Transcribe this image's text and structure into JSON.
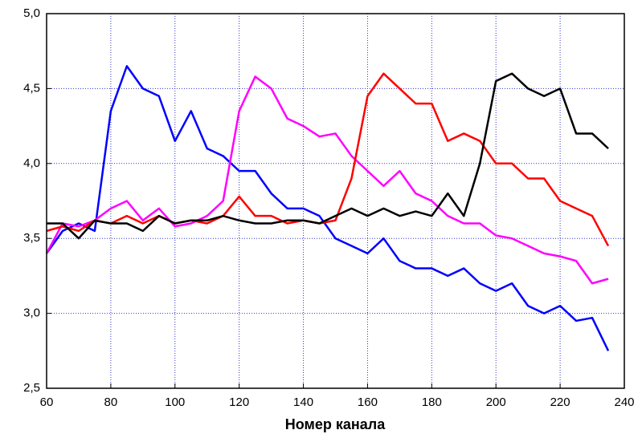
{
  "chart_data": {
    "type": "line",
    "x_label": "Номер канала",
    "x": [
      60,
      65,
      70,
      75,
      80,
      85,
      90,
      95,
      100,
      105,
      110,
      115,
      120,
      125,
      130,
      135,
      140,
      145,
      150,
      155,
      160,
      165,
      170,
      175,
      180,
      185,
      190,
      195,
      200,
      205,
      210,
      215,
      220,
      225,
      230,
      235
    ],
    "series": [
      {
        "color": "#0000ff",
        "values": [
          3.4,
          3.55,
          3.6,
          3.55,
          4.35,
          4.65,
          4.5,
          4.45,
          4.15,
          4.35,
          4.1,
          4.05,
          3.95,
          3.95,
          3.8,
          3.7,
          3.7,
          3.65,
          3.5,
          3.45,
          3.4,
          3.5,
          3.35,
          3.3,
          3.3,
          3.25,
          3.3,
          3.2,
          3.15,
          3.2,
          3.05,
          3.0,
          3.05,
          2.95,
          2.97,
          2.75
        ]
      },
      {
        "color": "#ff00ff",
        "values": [
          3.4,
          3.6,
          3.58,
          3.62,
          3.7,
          3.75,
          3.62,
          3.7,
          3.58,
          3.6,
          3.65,
          3.75,
          4.35,
          4.58,
          4.5,
          4.3,
          4.25,
          4.18,
          4.2,
          4.05,
          3.95,
          3.85,
          3.95,
          3.8,
          3.75,
          3.65,
          3.6,
          3.6,
          3.52,
          3.5,
          3.45,
          3.4,
          3.38,
          3.35,
          3.2,
          3.23
        ]
      },
      {
        "color": "#ff0000",
        "values": [
          3.55,
          3.58,
          3.55,
          3.62,
          3.6,
          3.65,
          3.6,
          3.65,
          3.6,
          3.62,
          3.6,
          3.65,
          3.78,
          3.65,
          3.65,
          3.6,
          3.62,
          3.6,
          3.62,
          3.9,
          4.45,
          4.6,
          4.5,
          4.4,
          4.4,
          4.15,
          4.2,
          4.15,
          4.0,
          4.0,
          3.9,
          3.9,
          3.75,
          3.7,
          3.65,
          3.45
        ]
      },
      {
        "color": "#000000",
        "values": [
          3.6,
          3.6,
          3.5,
          3.62,
          3.6,
          3.6,
          3.55,
          3.65,
          3.6,
          3.62,
          3.62,
          3.65,
          3.62,
          3.6,
          3.6,
          3.62,
          3.62,
          3.6,
          3.65,
          3.7,
          3.65,
          3.7,
          3.65,
          3.68,
          3.65,
          3.8,
          3.65,
          4.0,
          4.55,
          4.6,
          4.5,
          4.45,
          4.5,
          4.2,
          4.2,
          4.1
        ]
      }
    ],
    "xlim": [
      60,
      240
    ],
    "xticks": [
      60,
      80,
      100,
      120,
      140,
      160,
      180,
      200,
      220,
      240
    ],
    "ylim": [
      2.5,
      5.0
    ],
    "yticks": [
      {
        "value": 2.5,
        "label": "2,5"
      },
      {
        "value": 3.0,
        "label": "3,0"
      },
      {
        "value": 3.5,
        "label": "3,5"
      },
      {
        "value": 4.0,
        "label": "4,0"
      },
      {
        "value": 4.5,
        "label": "4,5"
      },
      {
        "value": 5.0,
        "label": "5,0"
      }
    ],
    "grid": true
  }
}
